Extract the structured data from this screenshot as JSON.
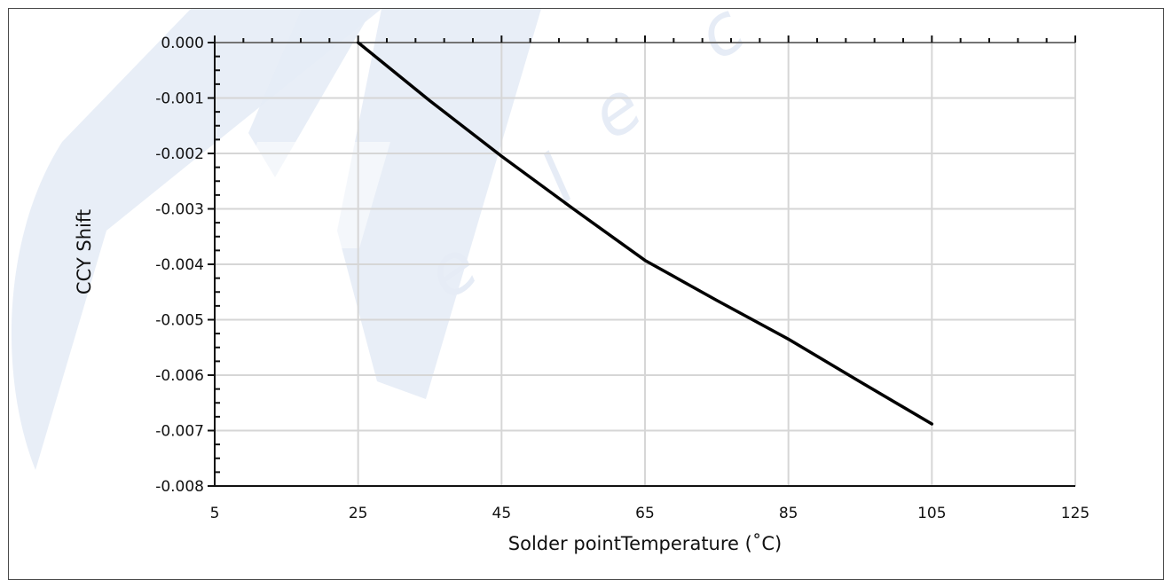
{
  "chart_data": {
    "type": "line",
    "xlabel": "Solder pointTemperature (˚C)",
    "ylabel": "CCY Shift",
    "xlim": [
      5,
      125
    ],
    "ylim": [
      -0.008,
      0.0
    ],
    "x_ticks": [
      "5",
      "25",
      "45",
      "65",
      "85",
      "105",
      "125"
    ],
    "y_ticks": [
      "0.000",
      "-0.001",
      "-0.002",
      "-0.003",
      "-0.004",
      "-0.005",
      "-0.006",
      "-0.007",
      "-0.008"
    ],
    "grid": true,
    "series": [
      {
        "color": "#000000",
        "points": [
          {
            "x": 25,
            "y": 0.0
          },
          {
            "x": 35,
            "y": -0.00105
          },
          {
            "x": 45,
            "y": -0.00205
          },
          {
            "x": 55,
            "y": -0.003
          },
          {
            "x": 65,
            "y": -0.00393
          },
          {
            "x": 75,
            "y": -0.00465
          },
          {
            "x": 85,
            "y": -0.00535
          },
          {
            "x": 95,
            "y": -0.00612
          },
          {
            "x": 105,
            "y": -0.00688
          }
        ]
      }
    ]
  },
  "watermark": {
    "color": "#e6ecf6",
    "letters": [
      "e",
      "l",
      "e",
      "c"
    ]
  }
}
